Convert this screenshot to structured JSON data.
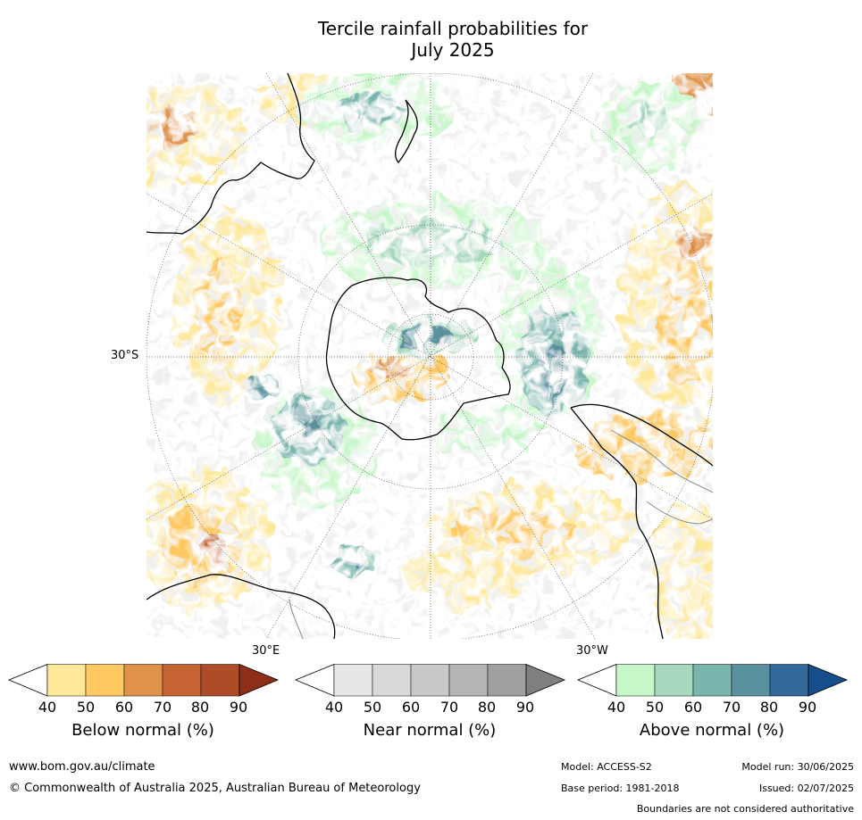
{
  "title": {
    "line1": "Tercile rainfall probabilities for",
    "line2": "July 2025"
  },
  "map": {
    "projection": "south-polar stereographic",
    "lat_label": "30°S",
    "lon_labels": {
      "east": "30°E",
      "west": "30°W"
    }
  },
  "colorbars": [
    {
      "label": "Below normal (%)",
      "ticks": [
        "40",
        "50",
        "60",
        "70",
        "80",
        "90"
      ],
      "colors": [
        "#ffffff",
        "#fee89a",
        "#fdc860",
        "#e0924a",
        "#c66434",
        "#ad4c29",
        "#8d2e18"
      ]
    },
    {
      "label": "Near normal (%)",
      "ticks": [
        "40",
        "50",
        "60",
        "70",
        "80",
        "90"
      ],
      "colors": [
        "#ffffff",
        "#e6e6e6",
        "#d9d9d9",
        "#c9c9c9",
        "#b5b5b5",
        "#a0a0a0",
        "#7f7f7f"
      ]
    },
    {
      "label": "Above normal (%)",
      "ticks": [
        "40",
        "50",
        "60",
        "70",
        "80",
        "90"
      ],
      "colors": [
        "#ffffff",
        "#c7f7c9",
        "#a6d8bd",
        "#7ab5ad",
        "#5a919e",
        "#33689a",
        "#154e8a"
      ]
    }
  ],
  "footer": {
    "website": "www.bom.gov.au/climate",
    "copyright": "© Commonwealth of Australia 2025, Australian Bureau of Meteorology",
    "model": "Model: ACCESS-S2",
    "model_run": "Model run: 30/06/2025",
    "base_period": "Base period: 1981-2018",
    "issued": "Issued: 02/07/2025",
    "disclaimer": "Boundaries are not considered authoritative"
  }
}
